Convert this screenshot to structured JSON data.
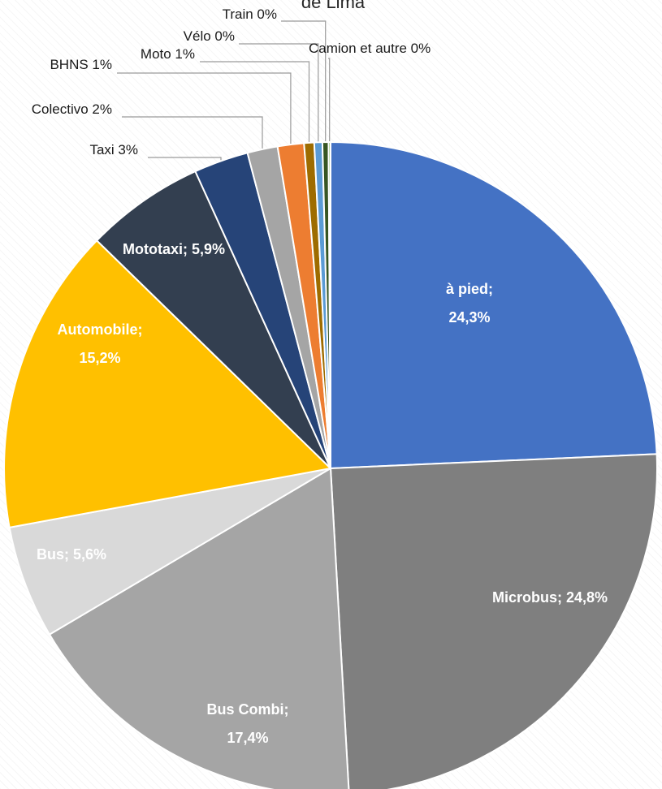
{
  "chart_data": {
    "type": "pie",
    "title": "de Lima",
    "slices": [
      {
        "name": "à pied",
        "value": 24.3,
        "label": "à pied; 24,3%",
        "color": "#4472C4",
        "label_style": "inside"
      },
      {
        "name": "Microbus",
        "value": 24.8,
        "label": "Microbus; 24,8%",
        "color": "#7F7F7F",
        "label_style": "inside"
      },
      {
        "name": "Bus Combi",
        "value": 17.4,
        "label": "Bus Combi; 17,4%",
        "color": "#A5A5A5",
        "label_style": "inside"
      },
      {
        "name": "Bus",
        "value": 5.6,
        "label": "Bus; 5,6%",
        "color": "#D9D9D9",
        "label_style": "inside"
      },
      {
        "name": "Automobile",
        "value": 15.2,
        "label": "Automobile; 15,2%",
        "color": "#FFC000",
        "label_style": "inside"
      },
      {
        "name": "Mototaxi",
        "value": 5.9,
        "label": "Mototaxi; 5,9%",
        "color": "#333F50",
        "label_style": "inside"
      },
      {
        "name": "Taxi",
        "value": 2.7,
        "label": "Taxi 3%",
        "color": "#264478",
        "label_style": "callout"
      },
      {
        "name": "Colectivo",
        "value": 1.5,
        "label": "Colectivo 2%",
        "color": "#A5A5A5",
        "label_style": "callout"
      },
      {
        "name": "BHNS",
        "value": 1.3,
        "label": "BHNS 1%",
        "color": "#ED7D31",
        "label_style": "callout"
      },
      {
        "name": "Moto",
        "value": 0.5,
        "label": "Moto 1%",
        "color": "#9E6C00",
        "label_style": "callout"
      },
      {
        "name": "Vélo",
        "value": 0.4,
        "label": "Vélo 0%",
        "color": "#5B9BD5",
        "label_style": "callout"
      },
      {
        "name": "Train",
        "value": 0.3,
        "label": "Train 0%",
        "color": "#375623",
        "label_style": "callout"
      },
      {
        "name": "Camion et autre",
        "value": 0.1,
        "label": "Camion et autre 0%",
        "color": "#70AD47",
        "label_style": "callout"
      }
    ]
  }
}
